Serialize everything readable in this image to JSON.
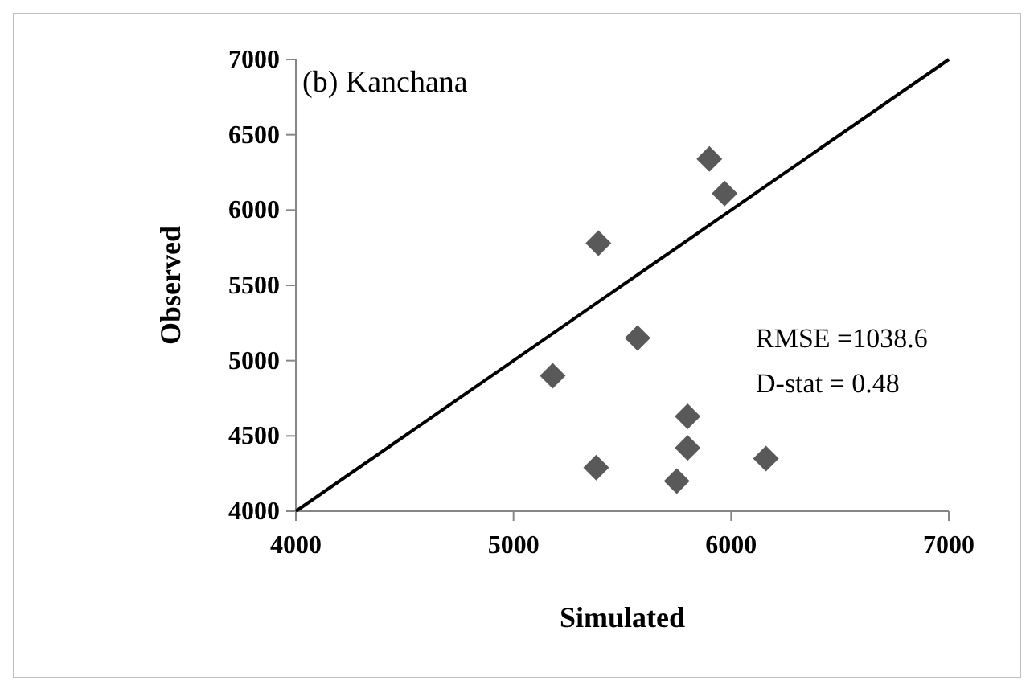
{
  "chart_data": {
    "type": "scatter",
    "xlabel": "Simulated",
    "ylabel": "Observed",
    "xlim": [
      4000,
      7000
    ],
    "xticks": [
      4000,
      5000,
      6000,
      7000
    ],
    "ylim": [
      4000,
      7000
    ],
    "yticks": [
      4000,
      4500,
      5000,
      5500,
      6000,
      6500,
      7000
    ],
    "grid": false,
    "series": [
      {
        "color": "#595959",
        "marker": "diamond",
        "x": [
          5900,
          5970,
          5390,
          5570,
          5180,
          5800,
          5800,
          6160,
          5380,
          5750
        ],
        "values": [
          6340,
          6110,
          5780,
          5150,
          4900,
          4630,
          4420,
          4350,
          4290,
          4200
        ]
      },
      {
        "type": "line",
        "color": "#000000",
        "x": [
          4000,
          7000
        ],
        "values": [
          4000,
          7000
        ]
      }
    ],
    "annotations": [
      "(b) Kanchana",
      "RMSE =1038.6",
      "D-stat = 0.48"
    ]
  }
}
